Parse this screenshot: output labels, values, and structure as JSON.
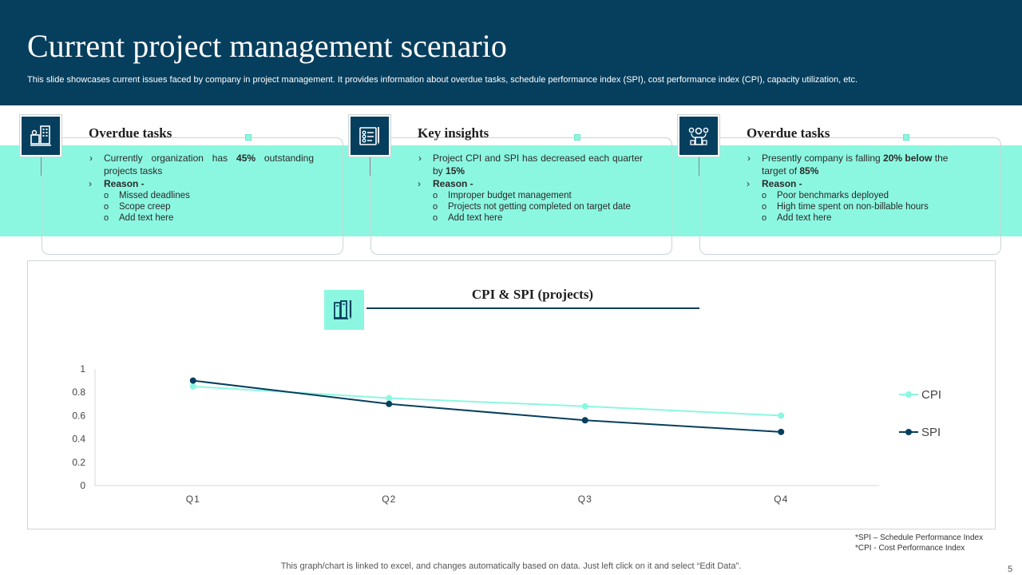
{
  "header": {
    "title": "Current project management scenario",
    "subtitle": "This slide showcases current issues faced by company in project management. It provides information about overdue tasks, schedule performance index (SPI), cost performance index (CPI), capacity utilization, etc."
  },
  "cards": [
    {
      "icon": "building-chart-icon",
      "title": "Overdue tasks",
      "line1_pre": "Currently organization has ",
      "line1_bold": "45%",
      "line1_post": " outstanding projects tasks",
      "reason": "Reason -",
      "subs": [
        "Missed deadlines",
        "Scope creep",
        "Add text here"
      ]
    },
    {
      "icon": "checklist-icon",
      "title": "Key insights",
      "line1_pre": "Project CPI and SPI has decreased each quarter by ",
      "line1_bold": "15%",
      "line1_post": "",
      "reason": "Reason -",
      "subs": [
        "Improper budget management",
        "Projects not getting completed on target date",
        "Add text here"
      ]
    },
    {
      "icon": "gears-network-icon",
      "title": "Overdue tasks",
      "line1_pre": "Presently company is falling ",
      "line1_bold": "20% below",
      "line1_post": " the target of ",
      "line1_bold2": "85%",
      "reason": "Reason -",
      "subs": [
        "Poor benchmarks deployed",
        "High time spent on non-billable hours",
        "Add text here"
      ]
    }
  ],
  "chart_data": {
    "type": "line",
    "title": "CPI & SPI (projects)",
    "categories": [
      "Q1",
      "Q2",
      "Q3",
      "Q4"
    ],
    "series": [
      {
        "name": "CPI",
        "values": [
          0.85,
          0.75,
          0.68,
          0.6
        ],
        "color": "#8cf7e0"
      },
      {
        "name": "SPI",
        "values": [
          0.9,
          0.7,
          0.56,
          0.46
        ],
        "color": "#063f5e"
      }
    ],
    "yticks": [
      "0",
      "0.2",
      "0.4",
      "0.6",
      "0.8",
      "1"
    ],
    "ylim": [
      0,
      1
    ],
    "legend": "right"
  },
  "footnotes": {
    "spi": "*SPI – Schedule Performance Index",
    "cpi": "*CPI  - Cost Performance Index"
  },
  "bottom_note": "This graph/chart is linked to excel,  and changes automatically based on data. Just left click on it and select “Edit Data”.",
  "page_number": "5",
  "colors": {
    "navy": "#063f5e",
    "mint": "#8cf7e0"
  }
}
